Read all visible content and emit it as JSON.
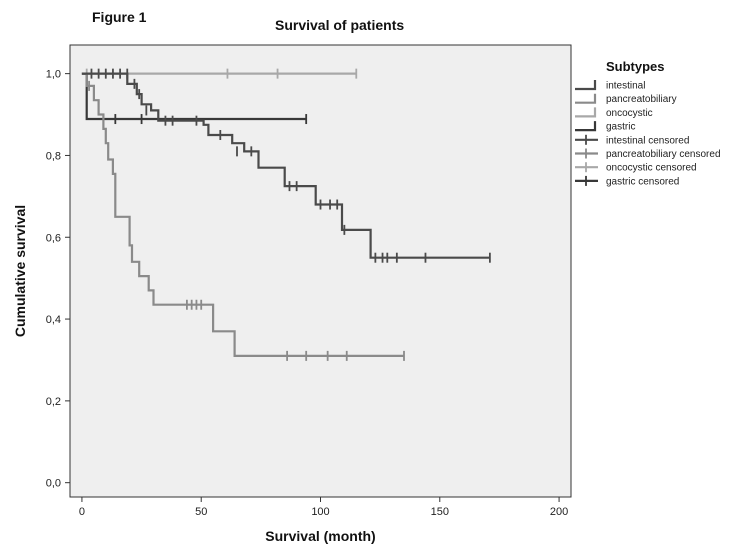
{
  "figure_label": "Figure 1",
  "chart_data": {
    "type": "line",
    "title": "Survival of patients",
    "xlabel": "Survival (month)",
    "ylabel": "Cumulative survival",
    "xlim": [
      -5,
      205
    ],
    "ylim": [
      -0.035,
      1.07
    ],
    "x_ticks": [
      0,
      50,
      100,
      150,
      200
    ],
    "x_tick_labels": [
      "0",
      "50",
      "100",
      "150",
      "200"
    ],
    "y_ticks": [
      0.0,
      0.2,
      0.4,
      0.6,
      0.8,
      1.0
    ],
    "y_tick_labels": [
      "0,0",
      "0,2",
      "0,4",
      "0,6",
      "0,8",
      "1,0"
    ],
    "grid": false,
    "plot_background": "#efefef",
    "legend": {
      "title": "Subtypes",
      "position": "right",
      "entries": [
        {
          "label": "intestinal",
          "kind": "line",
          "color": "#4a4a4a"
        },
        {
          "label": "pancreatobiliary",
          "kind": "line",
          "color": "#8a8a8a"
        },
        {
          "label": "oncocystic",
          "kind": "line",
          "color": "#a8a8a8"
        },
        {
          "label": "gastric",
          "kind": "line",
          "color": "#383838"
        },
        {
          "label": "intestinal censored",
          "kind": "censor",
          "color": "#4a4a4a"
        },
        {
          "label": "pancreatobiliary censored",
          "kind": "censor",
          "color": "#8a8a8a"
        },
        {
          "label": "oncocystic censored",
          "kind": "censor",
          "color": "#a8a8a8"
        },
        {
          "label": "gastric censored",
          "kind": "censor",
          "color": "#383838"
        }
      ]
    },
    "series": [
      {
        "name": "oncocystic",
        "color": "#a8a8a8",
        "steps": [
          [
            0,
            1.0
          ],
          [
            115,
            1.0
          ]
        ],
        "censored": [
          [
            2,
            1.0
          ],
          [
            61,
            1.0
          ],
          [
            82,
            1.0
          ],
          [
            115,
            1.0
          ]
        ]
      },
      {
        "name": "gastric",
        "color": "#383838",
        "steps": [
          [
            0,
            1.0
          ],
          [
            2,
            1.0
          ],
          [
            2,
            0.889
          ],
          [
            94,
            0.889
          ]
        ],
        "censored": [
          [
            9,
            0.889
          ],
          [
            14,
            0.889
          ],
          [
            25,
            0.889
          ],
          [
            94,
            0.889
          ]
        ]
      },
      {
        "name": "pancreatobiliary",
        "color": "#8a8a8a",
        "steps": [
          [
            0,
            1.0
          ],
          [
            2,
            1.0
          ],
          [
            2,
            0.97
          ],
          [
            5,
            0.97
          ],
          [
            5,
            0.935
          ],
          [
            7,
            0.935
          ],
          [
            7,
            0.9
          ],
          [
            9,
            0.9
          ],
          [
            9,
            0.865
          ],
          [
            10,
            0.865
          ],
          [
            10,
            0.83
          ],
          [
            11,
            0.83
          ],
          [
            11,
            0.79
          ],
          [
            13,
            0.79
          ],
          [
            13,
            0.755
          ],
          [
            14,
            0.755
          ],
          [
            14,
            0.65
          ],
          [
            20,
            0.65
          ],
          [
            20,
            0.58
          ],
          [
            21,
            0.58
          ],
          [
            21,
            0.54
          ],
          [
            24,
            0.54
          ],
          [
            24,
            0.505
          ],
          [
            28,
            0.505
          ],
          [
            28,
            0.47
          ],
          [
            30,
            0.47
          ],
          [
            30,
            0.435
          ],
          [
            55,
            0.435
          ],
          [
            55,
            0.37
          ],
          [
            64,
            0.37
          ],
          [
            64,
            0.31
          ],
          [
            135,
            0.31
          ]
        ],
        "censored": [
          [
            3,
            0.97
          ],
          [
            44,
            0.435
          ],
          [
            46,
            0.435
          ],
          [
            48,
            0.435
          ],
          [
            50,
            0.435
          ],
          [
            86,
            0.31
          ],
          [
            94,
            0.31
          ],
          [
            103,
            0.31
          ],
          [
            111,
            0.31
          ],
          [
            135,
            0.31
          ]
        ]
      },
      {
        "name": "intestinal",
        "color": "#4a4a4a",
        "steps": [
          [
            0,
            1.0
          ],
          [
            19,
            1.0
          ],
          [
            19,
            0.975
          ],
          [
            23,
            0.975
          ],
          [
            23,
            0.95
          ],
          [
            25,
            0.95
          ],
          [
            25,
            0.925
          ],
          [
            29,
            0.925
          ],
          [
            29,
            0.91
          ],
          [
            32,
            0.91
          ],
          [
            32,
            0.885
          ],
          [
            51,
            0.885
          ],
          [
            51,
            0.875
          ],
          [
            53,
            0.875
          ],
          [
            53,
            0.85
          ],
          [
            63,
            0.85
          ],
          [
            63,
            0.83
          ],
          [
            68,
            0.83
          ],
          [
            68,
            0.81
          ],
          [
            74,
            0.81
          ],
          [
            74,
            0.77
          ],
          [
            85,
            0.77
          ],
          [
            85,
            0.725
          ],
          [
            98,
            0.725
          ],
          [
            98,
            0.68
          ],
          [
            109,
            0.68
          ],
          [
            109,
            0.618
          ],
          [
            121,
            0.618
          ],
          [
            121,
            0.55
          ],
          [
            171,
            0.55
          ]
        ],
        "censored": [
          [
            4,
            1.0
          ],
          [
            7,
            1.0
          ],
          [
            10,
            1.0
          ],
          [
            13,
            1.0
          ],
          [
            16,
            1.0
          ],
          [
            19,
            1.0
          ],
          [
            22,
            0.975
          ],
          [
            24,
            0.95
          ],
          [
            27,
            0.91
          ],
          [
            35,
            0.885
          ],
          [
            38,
            0.885
          ],
          [
            48,
            0.885
          ],
          [
            58,
            0.85
          ],
          [
            65,
            0.81
          ],
          [
            71,
            0.81
          ],
          [
            87,
            0.725
          ],
          [
            90,
            0.725
          ],
          [
            100,
            0.68
          ],
          [
            104,
            0.68
          ],
          [
            107,
            0.68
          ],
          [
            110,
            0.618
          ],
          [
            123,
            0.55
          ],
          [
            126,
            0.55
          ],
          [
            128,
            0.55
          ],
          [
            132,
            0.55
          ],
          [
            144,
            0.55
          ],
          [
            171,
            0.55
          ]
        ]
      }
    ]
  }
}
